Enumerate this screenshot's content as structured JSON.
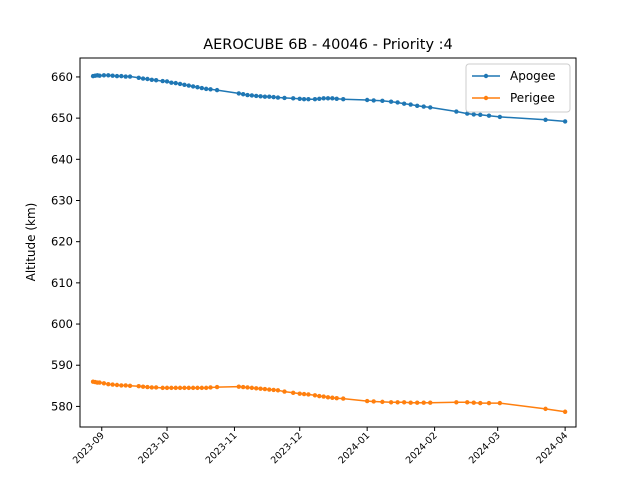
{
  "chart_data": {
    "type": "line",
    "title": "AEROCUBE 6B - 40046 - Priority :4",
    "xlabel": "",
    "ylabel": "Altitude (km)",
    "xlim": [
      "2023-08-22",
      "2024-04-06"
    ],
    "ylim": [
      575,
      664.6
    ],
    "x_ticks": [
      "2023-09",
      "2023-10",
      "2023-11",
      "2023-12",
      "2024-01",
      "2024-02",
      "2024-03",
      "2024-04"
    ],
    "y_ticks": [
      580,
      590,
      600,
      610,
      620,
      630,
      640,
      650,
      660
    ],
    "grid": false,
    "legend": "top-right",
    "series": [
      {
        "name": "Apogee",
        "color": "#1f77b4",
        "points": [
          [
            "2023-08-28",
            660.2
          ],
          [
            "2023-08-29",
            660.3
          ],
          [
            "2023-08-30",
            660.4
          ],
          [
            "2023-08-31",
            660.3
          ],
          [
            "2023-09-02",
            660.4
          ],
          [
            "2023-09-04",
            660.4
          ],
          [
            "2023-09-06",
            660.3
          ],
          [
            "2023-09-08",
            660.2
          ],
          [
            "2023-09-10",
            660.2
          ],
          [
            "2023-09-12",
            660.1
          ],
          [
            "2023-09-14",
            660.1
          ],
          [
            "2023-09-18",
            659.8
          ],
          [
            "2023-09-20",
            659.6
          ],
          [
            "2023-09-22",
            659.5
          ],
          [
            "2023-09-24",
            659.3
          ],
          [
            "2023-09-26",
            659.2
          ],
          [
            "2023-09-29",
            659.0
          ],
          [
            "2023-10-01",
            658.9
          ],
          [
            "2023-10-03",
            658.6
          ],
          [
            "2023-10-05",
            658.5
          ],
          [
            "2023-10-07",
            658.3
          ],
          [
            "2023-10-09",
            658.1
          ],
          [
            "2023-10-11",
            657.9
          ],
          [
            "2023-10-13",
            657.7
          ],
          [
            "2023-10-15",
            657.5
          ],
          [
            "2023-10-17",
            657.3
          ],
          [
            "2023-10-19",
            657.1
          ],
          [
            "2023-10-21",
            657.0
          ],
          [
            "2023-10-24",
            656.8
          ],
          [
            "2023-11-03",
            656.0
          ],
          [
            "2023-11-05",
            655.8
          ],
          [
            "2023-11-07",
            655.6
          ],
          [
            "2023-11-09",
            655.5
          ],
          [
            "2023-11-11",
            655.4
          ],
          [
            "2023-11-13",
            655.3
          ],
          [
            "2023-11-15",
            655.2
          ],
          [
            "2023-11-17",
            655.2
          ],
          [
            "2023-11-19",
            655.1
          ],
          [
            "2023-11-21",
            655.0
          ],
          [
            "2023-11-24",
            654.9
          ],
          [
            "2023-11-28",
            654.8
          ],
          [
            "2023-12-01",
            654.7
          ],
          [
            "2023-12-03",
            654.6
          ],
          [
            "2023-12-05",
            654.6
          ],
          [
            "2023-12-08",
            654.6
          ],
          [
            "2023-12-10",
            654.7
          ],
          [
            "2023-12-12",
            654.8
          ],
          [
            "2023-12-14",
            654.8
          ],
          [
            "2023-12-16",
            654.8
          ],
          [
            "2023-12-18",
            654.7
          ],
          [
            "2023-12-21",
            654.6
          ],
          [
            "2024-01-01",
            654.4
          ],
          [
            "2024-01-04",
            654.3
          ],
          [
            "2024-01-08",
            654.2
          ],
          [
            "2024-01-12",
            654.0
          ],
          [
            "2024-01-15",
            653.8
          ],
          [
            "2024-01-18",
            653.5
          ],
          [
            "2024-01-21",
            653.3
          ],
          [
            "2024-01-24",
            653.0
          ],
          [
            "2024-01-27",
            652.8
          ],
          [
            "2024-01-30",
            652.6
          ],
          [
            "2024-02-11",
            651.6
          ],
          [
            "2024-02-16",
            651.1
          ],
          [
            "2024-02-19",
            650.9
          ],
          [
            "2024-02-22",
            650.8
          ],
          [
            "2024-02-26",
            650.6
          ],
          [
            "2024-03-02",
            650.3
          ],
          [
            "2024-03-23",
            649.6
          ],
          [
            "2024-04-01",
            649.2
          ]
        ]
      },
      {
        "name": "Perigee",
        "color": "#ff7f0e",
        "points": [
          [
            "2023-08-28",
            586.0
          ],
          [
            "2023-08-29",
            585.9
          ],
          [
            "2023-08-30",
            585.8
          ],
          [
            "2023-08-31",
            585.8
          ],
          [
            "2023-09-02",
            585.6
          ],
          [
            "2023-09-04",
            585.4
          ],
          [
            "2023-09-06",
            585.3
          ],
          [
            "2023-09-08",
            585.2
          ],
          [
            "2023-09-10",
            585.1
          ],
          [
            "2023-09-12",
            585.1
          ],
          [
            "2023-09-14",
            585.0
          ],
          [
            "2023-09-18",
            584.9
          ],
          [
            "2023-09-20",
            584.8
          ],
          [
            "2023-09-22",
            584.7
          ],
          [
            "2023-09-24",
            584.6
          ],
          [
            "2023-09-26",
            584.6
          ],
          [
            "2023-09-29",
            584.5
          ],
          [
            "2023-10-01",
            584.5
          ],
          [
            "2023-10-03",
            584.5
          ],
          [
            "2023-10-05",
            584.5
          ],
          [
            "2023-10-07",
            584.5
          ],
          [
            "2023-10-09",
            584.5
          ],
          [
            "2023-10-11",
            584.5
          ],
          [
            "2023-10-13",
            584.5
          ],
          [
            "2023-10-15",
            584.5
          ],
          [
            "2023-10-17",
            584.5
          ],
          [
            "2023-10-19",
            584.5
          ],
          [
            "2023-10-21",
            584.6
          ],
          [
            "2023-10-24",
            584.7
          ],
          [
            "2023-11-03",
            584.8
          ],
          [
            "2023-11-05",
            584.7
          ],
          [
            "2023-11-07",
            584.6
          ],
          [
            "2023-11-09",
            584.5
          ],
          [
            "2023-11-11",
            584.4
          ],
          [
            "2023-11-13",
            584.3
          ],
          [
            "2023-11-15",
            584.2
          ],
          [
            "2023-11-17",
            584.1
          ],
          [
            "2023-11-19",
            584.0
          ],
          [
            "2023-11-21",
            583.9
          ],
          [
            "2023-11-24",
            583.6
          ],
          [
            "2023-11-28",
            583.3
          ],
          [
            "2023-12-01",
            583.1
          ],
          [
            "2023-12-03",
            583.0
          ],
          [
            "2023-12-05",
            582.9
          ],
          [
            "2023-12-08",
            582.7
          ],
          [
            "2023-12-10",
            582.5
          ],
          [
            "2023-12-12",
            582.4
          ],
          [
            "2023-12-14",
            582.2
          ],
          [
            "2023-12-16",
            582.1
          ],
          [
            "2023-12-18",
            582.0
          ],
          [
            "2023-12-21",
            581.9
          ],
          [
            "2024-01-01",
            581.3
          ],
          [
            "2024-01-04",
            581.2
          ],
          [
            "2024-01-08",
            581.1
          ],
          [
            "2024-01-12",
            581.0
          ],
          [
            "2024-01-15",
            581.0
          ],
          [
            "2024-01-18",
            581.0
          ],
          [
            "2024-01-21",
            580.9
          ],
          [
            "2024-01-24",
            580.9
          ],
          [
            "2024-01-27",
            580.9
          ],
          [
            "2024-01-30",
            580.9
          ],
          [
            "2024-02-11",
            581.0
          ],
          [
            "2024-02-16",
            581.0
          ],
          [
            "2024-02-19",
            580.9
          ],
          [
            "2024-02-22",
            580.8
          ],
          [
            "2024-02-26",
            580.8
          ],
          [
            "2024-03-02",
            580.8
          ],
          [
            "2024-03-23",
            579.4
          ],
          [
            "2024-04-01",
            578.7
          ]
        ]
      }
    ]
  }
}
